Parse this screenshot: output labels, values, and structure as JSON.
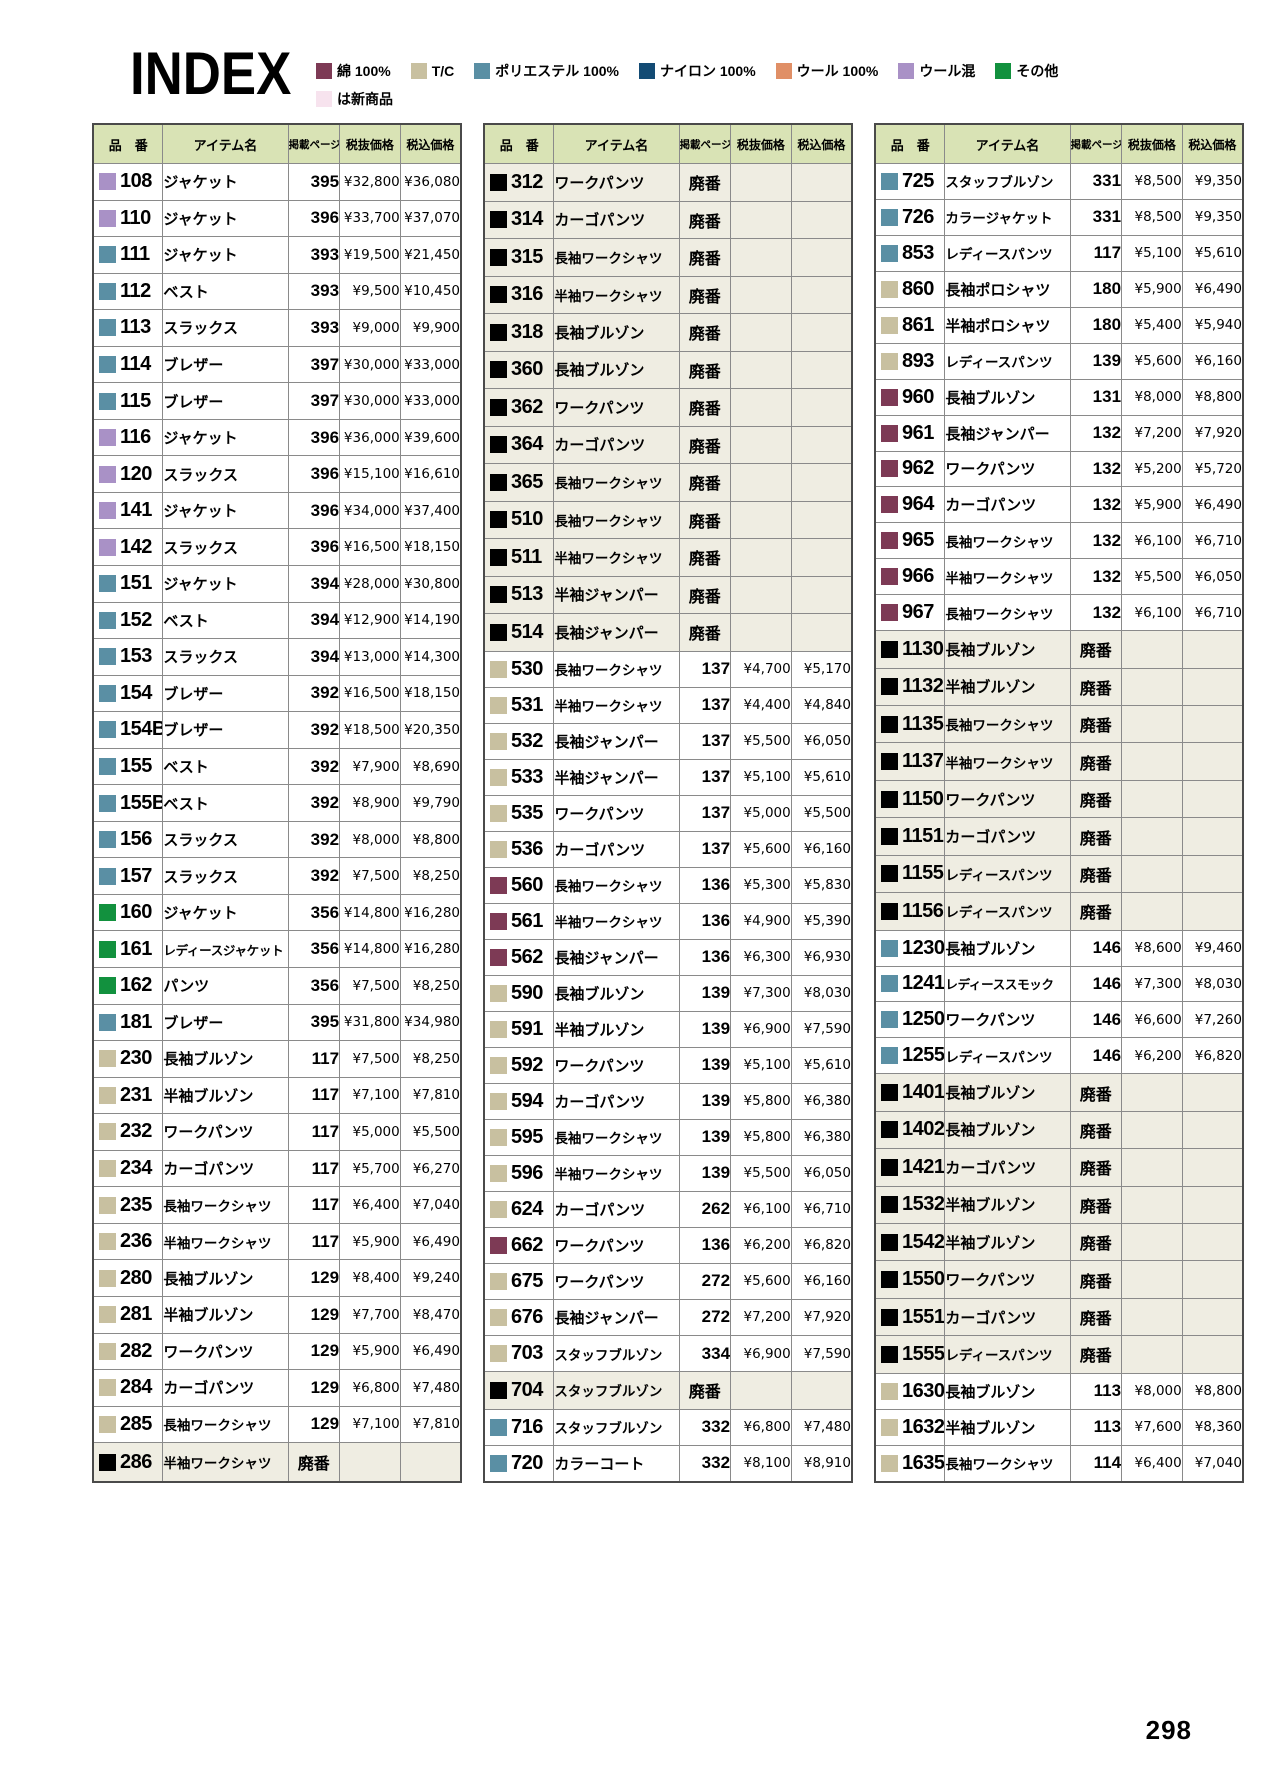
{
  "page": {
    "title": "INDEX",
    "folio": "298"
  },
  "colors": {
    "cotton": "#7d3a55",
    "tc": "#c8c0a0",
    "polyester": "#5a8fa4",
    "nylon": "#134b74",
    "wool": "#e08f66",
    "wool_blend": "#a991c6",
    "other": "#12913e",
    "new": "#f7e3ee",
    "black": "#000000"
  },
  "legend": {
    "row1": [
      {
        "c": "cotton",
        "label": "綿 100%"
      },
      {
        "c": "tc",
        "label": "T/C"
      },
      {
        "c": "polyester",
        "label": "ポリエステル 100%"
      },
      {
        "c": "nylon",
        "label": "ナイロン 100%"
      },
      {
        "c": "wool",
        "label": "ウール 100%"
      },
      {
        "c": "wool_blend",
        "label": "ウール混"
      },
      {
        "c": "other",
        "label": "その他"
      }
    ],
    "row2": [
      {
        "c": "new",
        "label": "は新商品"
      }
    ]
  },
  "columns": [
    "品　番",
    "アイテム名",
    "掲載ページ",
    "税抜価格",
    "税込価格"
  ],
  "labels": {
    "discontinued": "廃番"
  },
  "row_fields": [
    "color_key",
    "product_no",
    "item_name",
    "page",
    "price_ex_tax",
    "price_inc_tax"
  ],
  "tables": [
    {
      "rows": [
        [
          "wool_blend",
          "108",
          "ジャケット",
          "395",
          "¥32,800",
          "¥36,080"
        ],
        [
          "wool_blend",
          "110",
          "ジャケット",
          "396",
          "¥33,700",
          "¥37,070"
        ],
        [
          "polyester",
          "111",
          "ジャケット",
          "393",
          "¥19,500",
          "¥21,450"
        ],
        [
          "polyester",
          "112",
          "ベスト",
          "393",
          "¥9,500",
          "¥10,450"
        ],
        [
          "polyester",
          "113",
          "スラックス",
          "393",
          "¥9,000",
          "¥9,900"
        ],
        [
          "polyester",
          "114",
          "ブレザー",
          "397",
          "¥30,000",
          "¥33,000"
        ],
        [
          "polyester",
          "115",
          "ブレザー",
          "397",
          "¥30,000",
          "¥33,000"
        ],
        [
          "wool_blend",
          "116",
          "ジャケット",
          "396",
          "¥36,000",
          "¥39,600"
        ],
        [
          "wool_blend",
          "120",
          "スラックス",
          "396",
          "¥15,100",
          "¥16,610"
        ],
        [
          "wool_blend",
          "141",
          "ジャケット",
          "396",
          "¥34,000",
          "¥37,400"
        ],
        [
          "wool_blend",
          "142",
          "スラックス",
          "396",
          "¥16,500",
          "¥18,150"
        ],
        [
          "polyester",
          "151",
          "ジャケット",
          "394",
          "¥28,000",
          "¥30,800"
        ],
        [
          "polyester",
          "152",
          "ベスト",
          "394",
          "¥12,900",
          "¥14,190"
        ],
        [
          "polyester",
          "153",
          "スラックス",
          "394",
          "¥13,000",
          "¥14,300"
        ],
        [
          "polyester",
          "154",
          "ブレザー",
          "392",
          "¥16,500",
          "¥18,150"
        ],
        [
          "polyester",
          "154B",
          "ブレザー",
          "392",
          "¥18,500",
          "¥20,350"
        ],
        [
          "polyester",
          "155",
          "ベスト",
          "392",
          "¥7,900",
          "¥8,690"
        ],
        [
          "polyester",
          "155B",
          "ベスト",
          "392",
          "¥8,900",
          "¥9,790"
        ],
        [
          "polyester",
          "156",
          "スラックス",
          "392",
          "¥8,000",
          "¥8,800"
        ],
        [
          "polyester",
          "157",
          "スラックス",
          "392",
          "¥7,500",
          "¥8,250"
        ],
        [
          "other",
          "160",
          "ジャケット",
          "356",
          "¥14,800",
          "¥16,280"
        ],
        [
          "other",
          "161",
          "レディースジャケット",
          "356",
          "¥14,800",
          "¥16,280"
        ],
        [
          "other",
          "162",
          "パンツ",
          "356",
          "¥7,500",
          "¥8,250"
        ],
        [
          "polyester",
          "181",
          "ブレザー",
          "395",
          "¥31,800",
          "¥34,980"
        ],
        [
          "tc",
          "230",
          "長袖ブルゾン",
          "117",
          "¥7,500",
          "¥8,250"
        ],
        [
          "tc",
          "231",
          "半袖ブルゾン",
          "117",
          "¥7,100",
          "¥7,810"
        ],
        [
          "tc",
          "232",
          "ワークパンツ",
          "117",
          "¥5,000",
          "¥5,500"
        ],
        [
          "tc",
          "234",
          "カーゴパンツ",
          "117",
          "¥5,700",
          "¥6,270"
        ],
        [
          "tc",
          "235",
          "長袖ワークシャツ",
          "117",
          "¥6,400",
          "¥7,040"
        ],
        [
          "tc",
          "236",
          "半袖ワークシャツ",
          "117",
          "¥5,900",
          "¥6,490"
        ],
        [
          "tc",
          "280",
          "長袖ブルゾン",
          "129",
          "¥8,400",
          "¥9,240"
        ],
        [
          "tc",
          "281",
          "半袖ブルゾン",
          "129",
          "¥7,700",
          "¥8,470"
        ],
        [
          "tc",
          "282",
          "ワークパンツ",
          "129",
          "¥5,900",
          "¥6,490"
        ],
        [
          "tc",
          "284",
          "カーゴパンツ",
          "129",
          "¥6,800",
          "¥7,480"
        ],
        [
          "tc",
          "285",
          "長袖ワークシャツ",
          "129",
          "¥7,100",
          "¥7,810"
        ],
        [
          "black",
          "286",
          "半袖ワークシャツ",
          "廃番",
          "",
          ""
        ]
      ]
    },
    {
      "rows": [
        [
          "black",
          "312",
          "ワークパンツ",
          "廃番",
          "",
          ""
        ],
        [
          "black",
          "314",
          "カーゴパンツ",
          "廃番",
          "",
          ""
        ],
        [
          "black",
          "315",
          "長袖ワークシャツ",
          "廃番",
          "",
          ""
        ],
        [
          "black",
          "316",
          "半袖ワークシャツ",
          "廃番",
          "",
          ""
        ],
        [
          "black",
          "318",
          "長袖ブルゾン",
          "廃番",
          "",
          ""
        ],
        [
          "black",
          "360",
          "長袖ブルゾン",
          "廃番",
          "",
          ""
        ],
        [
          "black",
          "362",
          "ワークパンツ",
          "廃番",
          "",
          ""
        ],
        [
          "black",
          "364",
          "カーゴパンツ",
          "廃番",
          "",
          ""
        ],
        [
          "black",
          "365",
          "長袖ワークシャツ",
          "廃番",
          "",
          ""
        ],
        [
          "black",
          "510",
          "長袖ワークシャツ",
          "廃番",
          "",
          ""
        ],
        [
          "black",
          "511",
          "半袖ワークシャツ",
          "廃番",
          "",
          ""
        ],
        [
          "black",
          "513",
          "半袖ジャンパー",
          "廃番",
          "",
          ""
        ],
        [
          "black",
          "514",
          "長袖ジャンパー",
          "廃番",
          "",
          ""
        ],
        [
          "tc",
          "530",
          "長袖ワークシャツ",
          "137",
          "¥4,700",
          "¥5,170"
        ],
        [
          "tc",
          "531",
          "半袖ワークシャツ",
          "137",
          "¥4,400",
          "¥4,840"
        ],
        [
          "tc",
          "532",
          "長袖ジャンパー",
          "137",
          "¥5,500",
          "¥6,050"
        ],
        [
          "tc",
          "533",
          "半袖ジャンパー",
          "137",
          "¥5,100",
          "¥5,610"
        ],
        [
          "tc",
          "535",
          "ワークパンツ",
          "137",
          "¥5,000",
          "¥5,500"
        ],
        [
          "tc",
          "536",
          "カーゴパンツ",
          "137",
          "¥5,600",
          "¥6,160"
        ],
        [
          "cotton",
          "560",
          "長袖ワークシャツ",
          "136",
          "¥5,300",
          "¥5,830"
        ],
        [
          "cotton",
          "561",
          "半袖ワークシャツ",
          "136",
          "¥4,900",
          "¥5,390"
        ],
        [
          "cotton",
          "562",
          "長袖ジャンパー",
          "136",
          "¥6,300",
          "¥6,930"
        ],
        [
          "tc",
          "590",
          "長袖ブルゾン",
          "139",
          "¥7,300",
          "¥8,030"
        ],
        [
          "tc",
          "591",
          "半袖ブルゾン",
          "139",
          "¥6,900",
          "¥7,590"
        ],
        [
          "tc",
          "592",
          "ワークパンツ",
          "139",
          "¥5,100",
          "¥5,610"
        ],
        [
          "tc",
          "594",
          "カーゴパンツ",
          "139",
          "¥5,800",
          "¥6,380"
        ],
        [
          "tc",
          "595",
          "長袖ワークシャツ",
          "139",
          "¥5,800",
          "¥6,380"
        ],
        [
          "tc",
          "596",
          "半袖ワークシャツ",
          "139",
          "¥5,500",
          "¥6,050"
        ],
        [
          "tc",
          "624",
          "カーゴパンツ",
          "262",
          "¥6,100",
          "¥6,710"
        ],
        [
          "cotton",
          "662",
          "ワークパンツ",
          "136",
          "¥6,200",
          "¥6,820"
        ],
        [
          "tc",
          "675",
          "ワークパンツ",
          "272",
          "¥5,600",
          "¥6,160"
        ],
        [
          "tc",
          "676",
          "長袖ジャンパー",
          "272",
          "¥7,200",
          "¥7,920"
        ],
        [
          "tc",
          "703",
          "スタッフブルゾン",
          "334",
          "¥6,900",
          "¥7,590"
        ],
        [
          "black",
          "704",
          "スタッフブルゾン",
          "廃番",
          "",
          ""
        ],
        [
          "polyester",
          "716",
          "スタッフブルゾン",
          "332",
          "¥6,800",
          "¥7,480"
        ],
        [
          "polyester",
          "720",
          "カラーコート",
          "332",
          "¥8,100",
          "¥8,910"
        ]
      ]
    },
    {
      "rows": [
        [
          "polyester",
          "725",
          "スタッフブルゾン",
          "331",
          "¥8,500",
          "¥9,350"
        ],
        [
          "polyester",
          "726",
          "カラージャケット",
          "331",
          "¥8,500",
          "¥9,350"
        ],
        [
          "polyester",
          "853",
          "レディースパンツ",
          "117",
          "¥5,100",
          "¥5,610"
        ],
        [
          "tc",
          "860",
          "長袖ポロシャツ",
          "180",
          "¥5,900",
          "¥6,490"
        ],
        [
          "tc",
          "861",
          "半袖ポロシャツ",
          "180",
          "¥5,400",
          "¥5,940"
        ],
        [
          "tc",
          "893",
          "レディースパンツ",
          "139",
          "¥5,600",
          "¥6,160"
        ],
        [
          "cotton",
          "960",
          "長袖ブルゾン",
          "131",
          "¥8,000",
          "¥8,800"
        ],
        [
          "cotton",
          "961",
          "長袖ジャンパー",
          "132",
          "¥7,200",
          "¥7,920"
        ],
        [
          "cotton",
          "962",
          "ワークパンツ",
          "132",
          "¥5,200",
          "¥5,720"
        ],
        [
          "cotton",
          "964",
          "カーゴパンツ",
          "132",
          "¥5,900",
          "¥6,490"
        ],
        [
          "cotton",
          "965",
          "長袖ワークシャツ",
          "132",
          "¥6,100",
          "¥6,710"
        ],
        [
          "cotton",
          "966",
          "半袖ワークシャツ",
          "132",
          "¥5,500",
          "¥6,050"
        ],
        [
          "cotton",
          "967",
          "長袖ワークシャツ",
          "132",
          "¥6,100",
          "¥6,710"
        ],
        [
          "black",
          "1130",
          "長袖ブルゾン",
          "廃番",
          "",
          ""
        ],
        [
          "black",
          "1132",
          "半袖ブルゾン",
          "廃番",
          "",
          ""
        ],
        [
          "black",
          "1135",
          "長袖ワークシャツ",
          "廃番",
          "",
          ""
        ],
        [
          "black",
          "1137",
          "半袖ワークシャツ",
          "廃番",
          "",
          ""
        ],
        [
          "black",
          "1150",
          "ワークパンツ",
          "廃番",
          "",
          ""
        ],
        [
          "black",
          "1151",
          "カーゴパンツ",
          "廃番",
          "",
          ""
        ],
        [
          "black",
          "1155",
          "レディースパンツ",
          "廃番",
          "",
          ""
        ],
        [
          "black",
          "1156",
          "レディースパンツ",
          "廃番",
          "",
          ""
        ],
        [
          "polyester",
          "1230",
          "長袖ブルゾン",
          "146",
          "¥8,600",
          "¥9,460"
        ],
        [
          "polyester",
          "1241",
          "レディーススモック",
          "146",
          "¥7,300",
          "¥8,030"
        ],
        [
          "polyester",
          "1250",
          "ワークパンツ",
          "146",
          "¥6,600",
          "¥7,260"
        ],
        [
          "polyester",
          "1255",
          "レディースパンツ",
          "146",
          "¥6,200",
          "¥6,820"
        ],
        [
          "black",
          "1401",
          "長袖ブルゾン",
          "廃番",
          "",
          ""
        ],
        [
          "black",
          "1402",
          "長袖ブルゾン",
          "廃番",
          "",
          ""
        ],
        [
          "black",
          "1421",
          "カーゴパンツ",
          "廃番",
          "",
          ""
        ],
        [
          "black",
          "1532",
          "半袖ブルゾン",
          "廃番",
          "",
          ""
        ],
        [
          "black",
          "1542",
          "半袖ブルゾン",
          "廃番",
          "",
          ""
        ],
        [
          "black",
          "1550",
          "ワークパンツ",
          "廃番",
          "",
          ""
        ],
        [
          "black",
          "1551",
          "カーゴパンツ",
          "廃番",
          "",
          ""
        ],
        [
          "black",
          "1555",
          "レディースパンツ",
          "廃番",
          "",
          ""
        ],
        [
          "tc",
          "1630",
          "長袖ブルゾン",
          "113",
          "¥8,000",
          "¥8,800"
        ],
        [
          "tc",
          "1632",
          "半袖ブルゾン",
          "113",
          "¥7,600",
          "¥8,360"
        ],
        [
          "tc",
          "1635",
          "長袖ワークシャツ",
          "114",
          "¥6,400",
          "¥7,040"
        ]
      ]
    }
  ]
}
